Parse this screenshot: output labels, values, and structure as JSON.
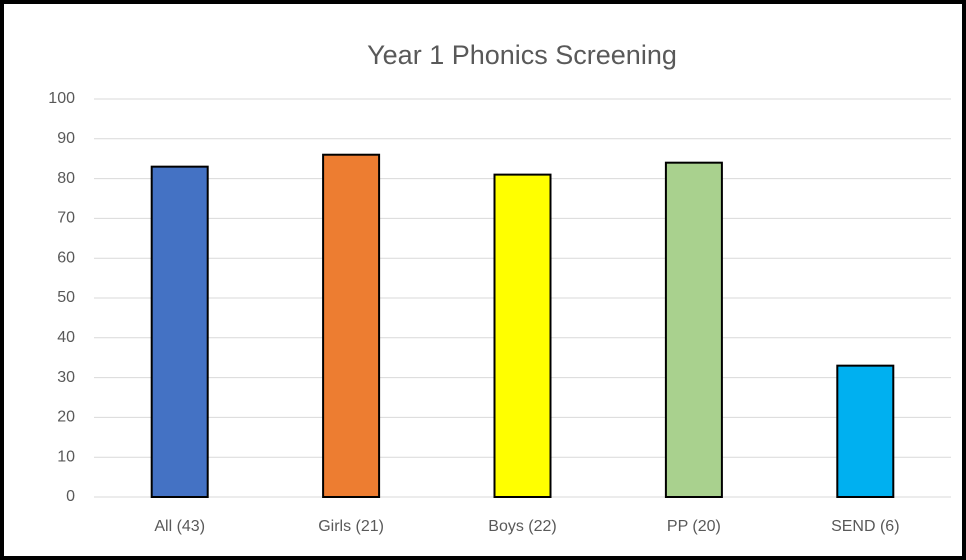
{
  "chart_data": {
    "type": "bar",
    "title": "Year 1 Phonics Screening",
    "categories": [
      "All (43)",
      "Girls (21)",
      "Boys (22)",
      "PP (20)",
      "SEND (6)"
    ],
    "values": [
      83,
      86,
      81,
      84,
      33
    ],
    "colors": [
      "#4472c4",
      "#ed7d31",
      "#ffff00",
      "#a9d18e",
      "#00b0f0"
    ],
    "ylim": [
      0,
      100
    ],
    "yticks": [
      0,
      10,
      20,
      30,
      40,
      50,
      60,
      70,
      80,
      90,
      100
    ],
    "grid": true
  }
}
